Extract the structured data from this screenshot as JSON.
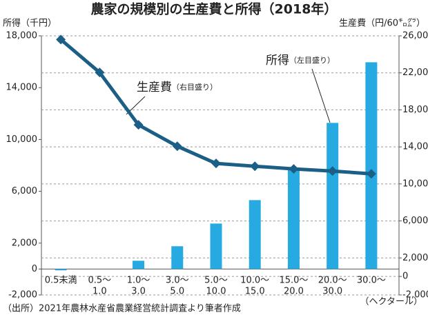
{
  "chart_data": {
    "type": "bar_line",
    "title": "農家の規模別の生産費と所得（2018年）",
    "y_label": "所得（千円）",
    "y2_label": "生産費（円/60㌔㌘）",
    "x_label": "（ヘクタール）",
    "source": "（出所）2021年農林水産省農業経営統計調査より筆者作成",
    "categories": [
      [
        "0.5未満"
      ],
      [
        "0.5～",
        "1.0"
      ],
      [
        "1.0～",
        "3.0"
      ],
      [
        "3.0～",
        "5.0"
      ],
      [
        "5.0～",
        "10.0"
      ],
      [
        "10.0～",
        "15.0"
      ],
      [
        "15.0～",
        "20.0"
      ],
      [
        "20.0～",
        "30.0"
      ],
      [
        "30.0～"
      ]
    ],
    "series": [
      {
        "name": "所得",
        "axis_note": "（左目盛り）",
        "color": "#27a9e1",
        "kind": "bar",
        "values": [
          -100,
          0,
          640,
          1760,
          3510,
          5320,
          7820,
          11280,
          15960
        ]
      },
      {
        "name": "生産費",
        "axis_note": "（右目盛り）",
        "color": "#1b5f86",
        "kind": "line",
        "axis": "y2",
        "values": [
          25600,
          22040,
          16380,
          14070,
          12210,
          11910,
          11620,
          11390,
          11090
        ]
      }
    ],
    "ylim": [
      -2000,
      18000
    ],
    "yticks": [
      {
        "value": 18000,
        "label": "18,000"
      },
      {
        "value": 14000,
        "label": "14,000"
      },
      {
        "value": 10000,
        "label": "10,000"
      },
      {
        "value": 6000,
        "label": "6,000"
      },
      {
        "value": 2000,
        "label": "2,000"
      },
      0,
      {
        "value": -2000,
        "label": "-2,000"
      }
    ],
    "y2lim": [
      -2000,
      26000
    ],
    "y2ticks": [
      {
        "value": 26000,
        "label": "26,000"
      },
      {
        "value": 22000,
        "label": "22,000"
      },
      {
        "value": 18000,
        "label": "18,000"
      },
      {
        "value": 14000,
        "label": "14,000"
      },
      {
        "value": 10000,
        "label": "10,000"
      },
      {
        "value": 6000,
        "label": "6,000"
      },
      {
        "value": 2000,
        "label": "2,000"
      },
      0,
      {
        "value": -2000,
        "label": "-2,000"
      }
    ],
    "grid": "y2"
  }
}
